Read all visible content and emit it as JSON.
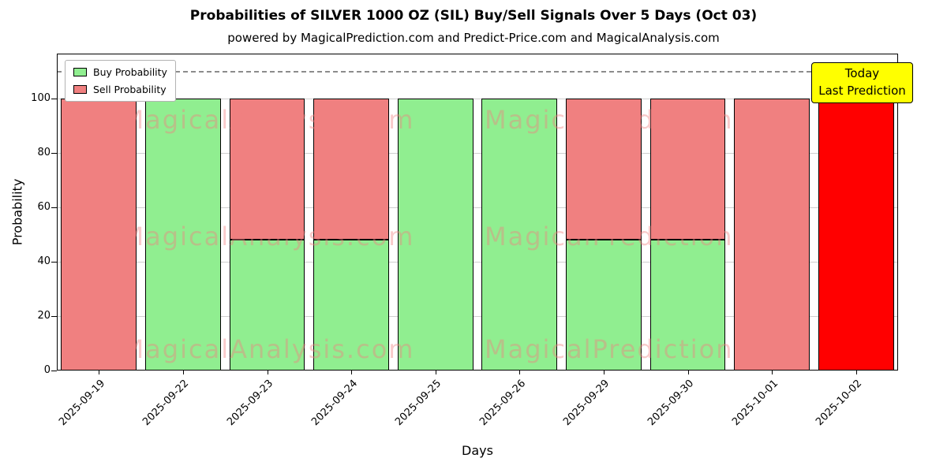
{
  "title": "Probabilities of SILVER 1000 OZ (SIL) Buy/Sell Signals Over 5 Days (Oct 03)",
  "subtitle": "powered by MagicalPrediction.com and Predict-Price.com and MagicalAnalysis.com",
  "chart_data": {
    "type": "bar",
    "stacked": true,
    "title": "Probabilities of SILVER 1000 OZ (SIL) Buy/Sell Signals Over 5 Days (Oct 03)",
    "xlabel": "Days",
    "ylabel": "Probability",
    "categories": [
      "2025-09-19",
      "2025-09-22",
      "2025-09-23",
      "2025-09-24",
      "2025-09-25",
      "2025-09-26",
      "2025-09-29",
      "2025-09-30",
      "2025-10-01",
      "2025-10-02"
    ],
    "series": [
      {
        "name": "Buy Probability",
        "color": "#90ee90",
        "values": [
          0,
          100,
          48,
          48,
          100,
          100,
          48,
          48,
          0,
          0
        ]
      },
      {
        "name": "Sell Probability",
        "color": "#f08080",
        "values": [
          100,
          0,
          52,
          52,
          0,
          0,
          52,
          52,
          100,
          100
        ]
      }
    ],
    "today_index": 9,
    "today_color": "#ff0000",
    "yticks": [
      0,
      20,
      40,
      60,
      80,
      100
    ],
    "ylim": [
      0,
      116.5
    ],
    "dashed_line_y": 110,
    "grid": "horizontal",
    "legend_position": "top-left"
  },
  "legend": {
    "items": [
      {
        "label": "Buy Probability",
        "color": "#90ee90"
      },
      {
        "label": "Sell Probability",
        "color": "#f08080"
      }
    ]
  },
  "annotation": {
    "line1": "Today",
    "line2": "Last Prediction",
    "bg": "#ffff00"
  },
  "watermarks": {
    "left": "MagicalAnalysis.com",
    "right": "MagicalPrediction.com"
  }
}
